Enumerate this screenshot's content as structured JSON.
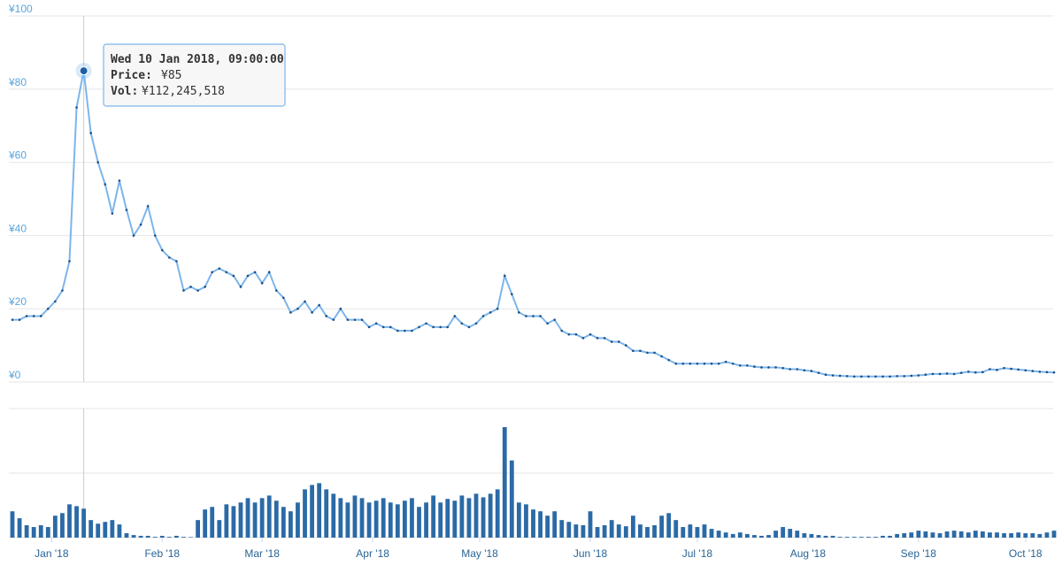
{
  "chart_data": {
    "type": "stock",
    "x": [
      "2017-12-21",
      "2017-12-23",
      "2017-12-25",
      "2017-12-27",
      "2017-12-29",
      "2017-12-31",
      "2018-01-02",
      "2018-01-04",
      "2018-01-06",
      "2018-01-08",
      "2018-01-10",
      "2018-01-12",
      "2018-01-14",
      "2018-01-16",
      "2018-01-18",
      "2018-01-20",
      "2018-01-22",
      "2018-01-24",
      "2018-01-26",
      "2018-01-28",
      "2018-01-30",
      "2018-02-01",
      "2018-02-03",
      "2018-02-05",
      "2018-02-07",
      "2018-02-09",
      "2018-02-11",
      "2018-02-13",
      "2018-02-15",
      "2018-02-17",
      "2018-02-19",
      "2018-02-21",
      "2018-02-23",
      "2018-02-25",
      "2018-02-27",
      "2018-03-01",
      "2018-03-03",
      "2018-03-05",
      "2018-03-07",
      "2018-03-09",
      "2018-03-11",
      "2018-03-13",
      "2018-03-15",
      "2018-03-17",
      "2018-03-19",
      "2018-03-21",
      "2018-03-23",
      "2018-03-25",
      "2018-03-27",
      "2018-03-29",
      "2018-03-31",
      "2018-04-02",
      "2018-04-04",
      "2018-04-06",
      "2018-04-08",
      "2018-04-10",
      "2018-04-12",
      "2018-04-14",
      "2018-04-16",
      "2018-04-18",
      "2018-04-20",
      "2018-04-22",
      "2018-04-24",
      "2018-04-26",
      "2018-04-28",
      "2018-04-30",
      "2018-05-02",
      "2018-05-04",
      "2018-05-06",
      "2018-05-08",
      "2018-05-10",
      "2018-05-12",
      "2018-05-14",
      "2018-05-16",
      "2018-05-18",
      "2018-05-20",
      "2018-05-22",
      "2018-05-24",
      "2018-05-26",
      "2018-05-28",
      "2018-05-30",
      "2018-06-01",
      "2018-06-03",
      "2018-06-05",
      "2018-06-07",
      "2018-06-09",
      "2018-06-11",
      "2018-06-13",
      "2018-06-15",
      "2018-06-17",
      "2018-06-19",
      "2018-06-21",
      "2018-06-23",
      "2018-06-25",
      "2018-06-27",
      "2018-06-29",
      "2018-07-01",
      "2018-07-03",
      "2018-07-05",
      "2018-07-07",
      "2018-07-09",
      "2018-07-11",
      "2018-07-13",
      "2018-07-15",
      "2018-07-17",
      "2018-07-19",
      "2018-07-21",
      "2018-07-23",
      "2018-07-25",
      "2018-07-27",
      "2018-07-29",
      "2018-07-31",
      "2018-08-02",
      "2018-08-04",
      "2018-08-06",
      "2018-08-08",
      "2018-08-10",
      "2018-08-12",
      "2018-08-14",
      "2018-08-16",
      "2018-08-18",
      "2018-08-20",
      "2018-08-22",
      "2018-08-24",
      "2018-08-26",
      "2018-08-28",
      "2018-08-30",
      "2018-09-01",
      "2018-09-03",
      "2018-09-05",
      "2018-09-07",
      "2018-09-09",
      "2018-09-11",
      "2018-09-13",
      "2018-09-15",
      "2018-09-17",
      "2018-09-19",
      "2018-09-21",
      "2018-09-23",
      "2018-09-25",
      "2018-09-27",
      "2018-09-29",
      "2018-10-01",
      "2018-10-03",
      "2018-10-05",
      "2018-10-07",
      "2018-10-09"
    ],
    "xlim": [
      "2017-12-21",
      "2018-10-09"
    ],
    "xticks": [
      {
        "value": "2018-01-01",
        "label": "Jan '18"
      },
      {
        "value": "2018-02-01",
        "label": "Feb '18"
      },
      {
        "value": "2018-03-01",
        "label": "Mar '18"
      },
      {
        "value": "2018-04-01",
        "label": "Apr '18"
      },
      {
        "value": "2018-05-01",
        "label": "May '18"
      },
      {
        "value": "2018-06-01",
        "label": "Jun '18"
      },
      {
        "value": "2018-07-01",
        "label": "Jul '18"
      },
      {
        "value": "2018-08-01",
        "label": "Aug '18"
      },
      {
        "value": "2018-09-01",
        "label": "Sep '18"
      },
      {
        "value": "2018-10-01",
        "label": "Oct '18"
      }
    ],
    "ylim": [
      0,
      100
    ],
    "yticks": [
      {
        "value": 0,
        "label": "¥0"
      },
      {
        "value": 20,
        "label": "¥20"
      },
      {
        "value": 40,
        "label": "¥40"
      },
      {
        "value": 60,
        "label": "¥60"
      },
      {
        "value": 80,
        "label": "¥80"
      },
      {
        "value": 100,
        "label": "¥100"
      }
    ],
    "y2lim": [
      0,
      500000000
    ],
    "y2ticks": [
      0,
      250000000,
      500000000
    ],
    "grid": true,
    "series": [
      {
        "color": "#7cb5ec",
        "values": [
          17,
          17,
          18,
          18,
          18,
          20,
          22,
          25,
          33,
          75,
          85,
          68,
          60,
          54,
          46,
          55,
          47,
          40,
          43,
          48,
          40,
          36,
          34,
          33,
          25,
          26,
          25,
          26,
          30,
          31,
          30,
          29,
          26,
          29,
          30,
          27,
          30,
          25,
          23,
          19,
          20,
          22,
          19,
          21,
          18,
          17,
          20,
          17,
          17,
          17,
          15,
          16,
          15,
          15,
          14,
          14,
          14,
          15,
          16,
          15,
          15,
          15,
          18,
          16,
          15,
          16,
          18,
          19,
          20,
          29,
          24,
          19,
          18,
          18,
          18,
          16,
          17,
          14,
          13,
          13,
          12,
          13,
          12,
          12,
          11,
          11,
          10,
          8.5,
          8.5,
          8,
          8,
          7,
          6,
          5,
          5,
          5,
          5,
          5,
          5,
          5,
          5.5,
          5,
          4.5,
          4.5,
          4.2,
          4,
          4,
          4,
          3.8,
          3.5,
          3.5,
          3.2,
          3,
          2.5,
          2,
          1.8,
          1.7,
          1.6,
          1.5,
          1.5,
          1.5,
          1.5,
          1.5,
          1.5,
          1.6,
          1.6,
          1.7,
          1.8,
          2,
          2.2,
          2.2,
          2.3,
          2.2,
          2.5,
          2.8,
          2.6,
          2.7,
          3.5,
          3.3,
          3.8,
          3.6,
          3.4,
          3.2,
          3,
          2.8,
          2.7,
          2.6
        ]
      },
      {
        "color": "#2b6aa6",
        "axis": "y2",
        "values": [
          102000000,
          75000000,
          48000000,
          41000000,
          48000000,
          41000000,
          85000000,
          95000000,
          129000000,
          122000000,
          112245518,
          68000000,
          54000000,
          61000000,
          68000000,
          51000000,
          17000000,
          10000000,
          7000000,
          7000000,
          3000000,
          7000000,
          3000000,
          7000000,
          3000000,
          2000000,
          68000000,
          109000000,
          119000000,
          68000000,
          129000000,
          122000000,
          136000000,
          153000000,
          136000000,
          153000000,
          163000000,
          143000000,
          119000000,
          102000000,
          136000000,
          187000000,
          204000000,
          211000000,
          187000000,
          170000000,
          153000000,
          136000000,
          163000000,
          153000000,
          136000000,
          143000000,
          153000000,
          136000000,
          129000000,
          143000000,
          153000000,
          119000000,
          136000000,
          163000000,
          136000000,
          150000000,
          143000000,
          163000000,
          153000000,
          170000000,
          156000000,
          170000000,
          187000000,
          428000000,
          299000000,
          136000000,
          129000000,
          109000000,
          102000000,
          85000000,
          102000000,
          68000000,
          61000000,
          51000000,
          48000000,
          102000000,
          41000000,
          48000000,
          68000000,
          51000000,
          44000000,
          85000000,
          51000000,
          41000000,
          48000000,
          85000000,
          95000000,
          68000000,
          41000000,
          51000000,
          41000000,
          51000000,
          34000000,
          27000000,
          20000000,
          14000000,
          20000000,
          14000000,
          10000000,
          7000000,
          10000000,
          27000000,
          41000000,
          34000000,
          27000000,
          17000000,
          14000000,
          10000000,
          7000000,
          7000000,
          3000000,
          3000000,
          3000000,
          3000000,
          3000000,
          3000000,
          7000000,
          7000000,
          14000000,
          17000000,
          20000000,
          27000000,
          24000000,
          20000000,
          17000000,
          24000000,
          27000000,
          24000000,
          20000000,
          27000000,
          24000000,
          20000000,
          20000000,
          17000000,
          17000000,
          20000000,
          17000000,
          17000000,
          14000000,
          20000000,
          27000000
        ]
      }
    ],
    "tooltip": {
      "date": "Wed 10 Jan 2018, 09:00:00",
      "price_label": "Price:",
      "price": "¥85",
      "vol_label": "Vol:",
      "vol": "¥112,245,518"
    }
  }
}
